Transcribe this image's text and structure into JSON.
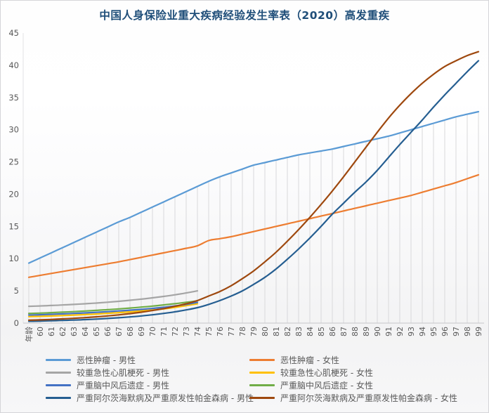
{
  "chart_data": {
    "type": "line",
    "title": "中国人身保险业重大疾病经验发生率表（2020）高发重疾",
    "title_color": "#1F4E79",
    "x_first_label": "年龄",
    "categories": [
      "年龄",
      "60",
      "61",
      "62",
      "63",
      "64",
      "65",
      "66",
      "67",
      "68",
      "69",
      "70",
      "71",
      "72",
      "73",
      "74",
      "75",
      "76",
      "77",
      "78",
      "79",
      "80",
      "81",
      "82",
      "83",
      "84",
      "85",
      "86",
      "87",
      "88",
      "89",
      "90",
      "91",
      "92",
      "93",
      "94",
      "95",
      "96",
      "97",
      "98",
      "99"
    ],
    "y_ticks": [
      0,
      5,
      10,
      15,
      20,
      25,
      30,
      35,
      40,
      45
    ],
    "ylim": [
      0,
      45
    ],
    "grid": "vertical-drop-lines",
    "legend_position": "bottom",
    "series": [
      {
        "name": "恶性肿瘤 - 男性",
        "color": "#5B9BD5",
        "drop_lines": true,
        "values": [
          9.3,
          10.1,
          10.9,
          11.7,
          12.5,
          13.3,
          14.1,
          14.9,
          15.7,
          16.4,
          17.2,
          18.0,
          18.8,
          19.6,
          20.4,
          21.2,
          22.0,
          22.7,
          23.3,
          23.9,
          24.5,
          24.9,
          25.3,
          25.7,
          26.1,
          26.4,
          26.7,
          27.0,
          27.4,
          27.8,
          28.2,
          28.6,
          29.0,
          29.5,
          30.0,
          30.5,
          31.0,
          31.5,
          32.0,
          32.4,
          32.8
        ]
      },
      {
        "name": "恶性肿瘤 - 女性",
        "color": "#ED7D31",
        "values": [
          7.1,
          7.4,
          7.7,
          8.0,
          8.3,
          8.6,
          8.9,
          9.2,
          9.5,
          9.85,
          10.2,
          10.55,
          10.9,
          11.25,
          11.6,
          12.0,
          12.8,
          13.1,
          13.4,
          13.8,
          14.2,
          14.6,
          15.0,
          15.4,
          15.8,
          16.2,
          16.6,
          17.0,
          17.4,
          17.8,
          18.2,
          18.6,
          19.0,
          19.4,
          19.8,
          20.3,
          20.8,
          21.3,
          21.8,
          22.4,
          23.0
        ]
      },
      {
        "name": "较重急性心肌梗死 - 男性",
        "color": "#A5A5A5",
        "values": [
          2.6,
          2.66,
          2.73,
          2.81,
          2.9,
          3.0,
          3.11,
          3.24,
          3.38,
          3.54,
          3.72,
          3.92,
          4.14,
          4.39,
          4.67,
          5.0
        ]
      },
      {
        "name": "较重急性心肌梗死 - 女性",
        "color": "#FFC000",
        "values": [
          1.0,
          1.05,
          1.1,
          1.17,
          1.24,
          1.32,
          1.41,
          1.51,
          1.62,
          1.74,
          1.88,
          2.03,
          2.2,
          2.43,
          2.7,
          3.0
        ]
      },
      {
        "name": "严重脑中风后遗症 - 男性",
        "color": "#4472C4",
        "values": [
          1.25,
          1.3,
          1.36,
          1.43,
          1.5,
          1.58,
          1.67,
          1.77,
          1.88,
          2.0,
          2.13,
          2.28,
          2.45,
          2.66,
          2.9,
          3.2
        ]
      },
      {
        "name": "严重脑中风后遗症 - 女性",
        "color": "#70AD47",
        "values": [
          1.5,
          1.55,
          1.62,
          1.7,
          1.78,
          1.87,
          1.97,
          2.08,
          2.2,
          2.33,
          2.48,
          2.64,
          2.82,
          3.01,
          3.22,
          3.45
        ]
      },
      {
        "name": "严重阿尔茨海默病及严重原发性帕金森病 - 男性",
        "color": "#255E91",
        "values": [
          0.28,
          0.32,
          0.36,
          0.41,
          0.47,
          0.54,
          0.62,
          0.72,
          0.83,
          0.96,
          1.11,
          1.29,
          1.5,
          1.75,
          2.05,
          2.4,
          2.9,
          3.5,
          4.2,
          5.0,
          6.0,
          7.1,
          8.4,
          9.9,
          11.5,
          13.2,
          15.0,
          16.9,
          18.6,
          20.3,
          21.9,
          23.7,
          25.7,
          27.7,
          29.6,
          31.5,
          33.5,
          35.4,
          37.2,
          39.0,
          40.7
        ]
      },
      {
        "name": "严重阿尔茨海默病及严重原发性帕金森病 - 女性",
        "color": "#9E480E",
        "values": [
          0.45,
          0.5,
          0.57,
          0.65,
          0.74,
          0.85,
          0.97,
          1.11,
          1.28,
          1.47,
          1.69,
          1.95,
          2.25,
          2.6,
          3.0,
          3.5,
          4.2,
          4.9,
          5.8,
          6.9,
          8.1,
          9.5,
          11.0,
          12.7,
          14.5,
          16.4,
          18.4,
          20.5,
          22.7,
          25.0,
          27.3,
          29.6,
          31.8,
          33.8,
          35.6,
          37.2,
          38.6,
          39.8,
          40.7,
          41.5,
          42.1
        ]
      }
    ]
  }
}
